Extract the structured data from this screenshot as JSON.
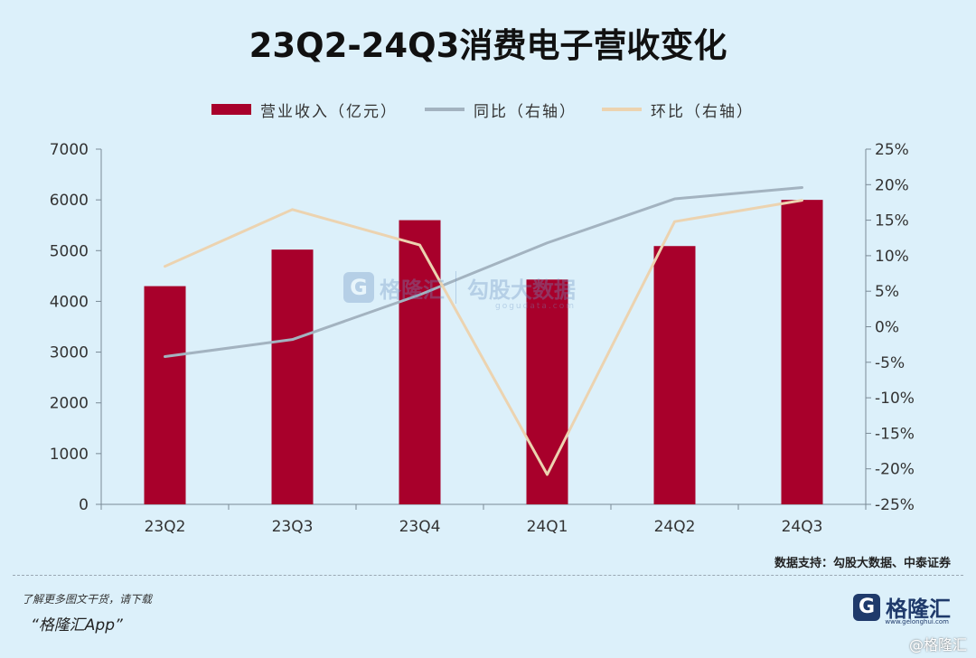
{
  "title": "23Q2-24Q3消费电子营收变化",
  "legend": {
    "revenue": "营业收入（亿元）",
    "yoy": "同比（右轴）",
    "qoq": "环比（右轴）"
  },
  "chart_data": {
    "type": "bar",
    "categories": [
      "23Q2",
      "23Q3",
      "23Q4",
      "24Q1",
      "24Q2",
      "24Q3"
    ],
    "series": [
      {
        "name": "营业收入（亿元）",
        "type": "bar",
        "axis": "left",
        "color": "#a8002b",
        "values": [
          4300,
          5020,
          5600,
          4430,
          5090,
          6000
        ]
      },
      {
        "name": "同比（右轴）",
        "type": "line",
        "axis": "right",
        "color": "#a3b3c0",
        "values": [
          -4.2,
          -1.8,
          4.5,
          11.8,
          18.0,
          19.6
        ]
      },
      {
        "name": "环比（右轴）",
        "type": "line",
        "axis": "right",
        "color": "#ecd3b0",
        "values": [
          8.5,
          16.5,
          11.5,
          -20.8,
          14.8,
          17.8
        ]
      }
    ],
    "y_left": {
      "min": 0,
      "max": 7000,
      "ticks": [
        "0",
        "1000",
        "2000",
        "3000",
        "4000",
        "5000",
        "6000",
        "7000"
      ]
    },
    "y_right": {
      "min": -25,
      "max": 25,
      "ticks": [
        "-25%",
        "-20%",
        "-15%",
        "-10%",
        "-5%",
        "0%",
        "5%",
        "10%",
        "15%",
        "20%",
        "25%"
      ]
    },
    "legend_position": "top",
    "grid": false
  },
  "source": "数据支持：勾股大数据、中泰证券",
  "watermark": {
    "brand1": "格隆汇",
    "brand2": "勾股大数据",
    "url": "gogudata.com"
  },
  "footer": {
    "line1": "了解更多图文干货，请下载",
    "line2": "“格隆汇App”"
  },
  "brand": {
    "name": "格隆汇",
    "url": "www.gelonghui.com"
  },
  "corner_mark": "@格隆汇",
  "colors": {
    "background": "#dcf0fa",
    "bar": "#a8002b",
    "yoy_line": "#a3b3c0",
    "qoq_line": "#ecd3b0"
  }
}
